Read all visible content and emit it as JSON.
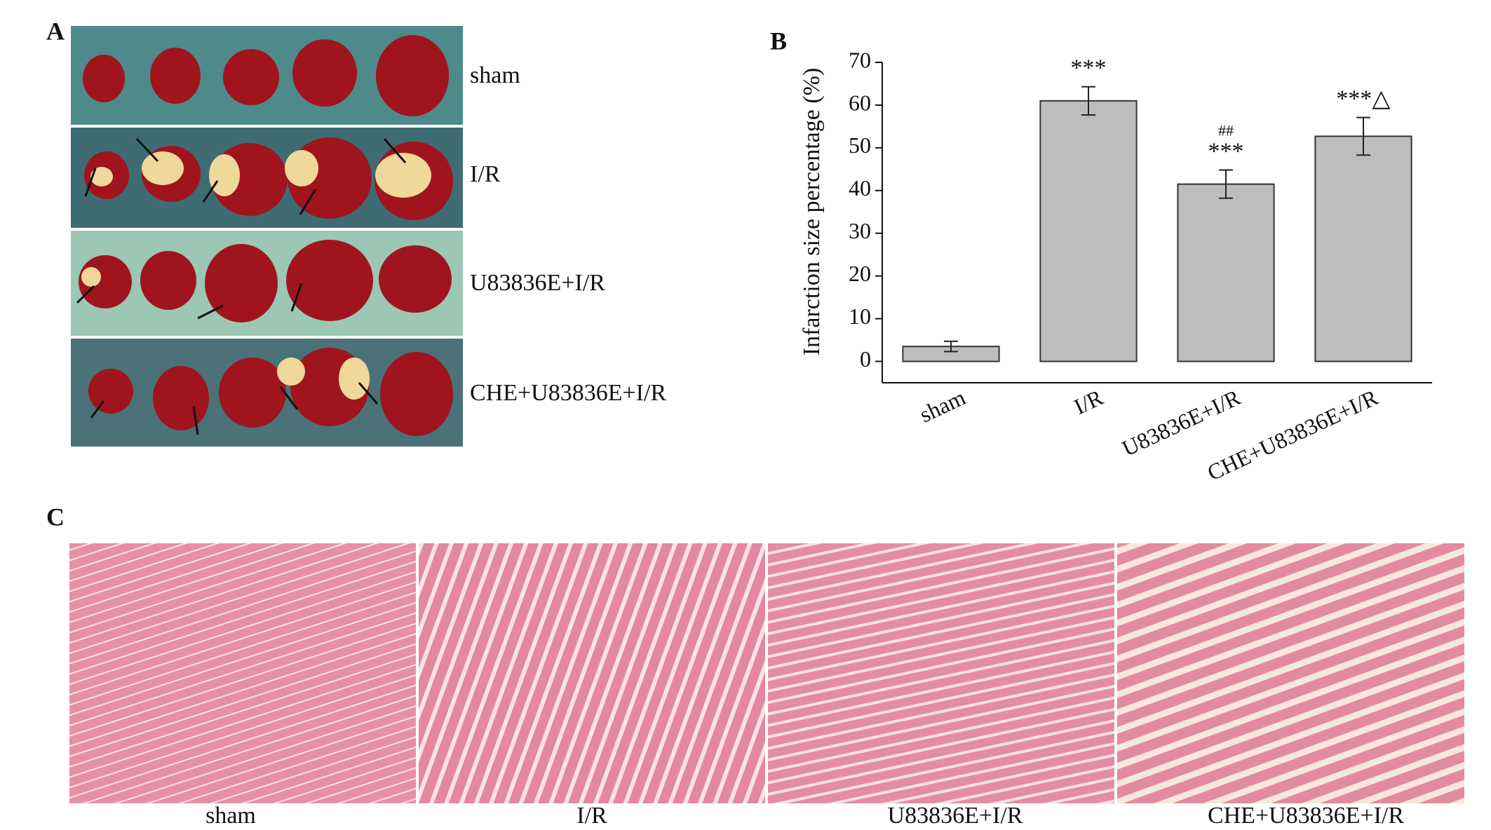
{
  "panels": {
    "a": {
      "letter": "A",
      "rows": [
        "sham",
        "I/R",
        "U83836E+I/R",
        "CHE+U83836E+I/R"
      ]
    },
    "c": {
      "letter": "C",
      "labels": [
        "sham",
        "I/R",
        "U83836E+I/R",
        "CHE+U83836E+I/R"
      ]
    }
  },
  "chart_data": {
    "type": "bar",
    "letter": "B",
    "y_label": "Infarction size percentage (%)",
    "categories": [
      "sham",
      "I/R",
      "U83836E+I/R",
      "CHE+U83836E+I/R"
    ],
    "values": [
      3.5,
      61,
      41.5,
      52.7
    ],
    "errors": [
      1.2,
      3.3,
      3.3,
      4.4
    ],
    "annotations": [
      null,
      [
        "***"
      ],
      [
        "##",
        "***"
      ],
      [
        "***△"
      ]
    ],
    "color": "#bdbdbd",
    "ylim": [
      -5,
      70
    ],
    "yticks": [
      0,
      10,
      20,
      30,
      40,
      50,
      60,
      70
    ],
    "grid": false
  }
}
